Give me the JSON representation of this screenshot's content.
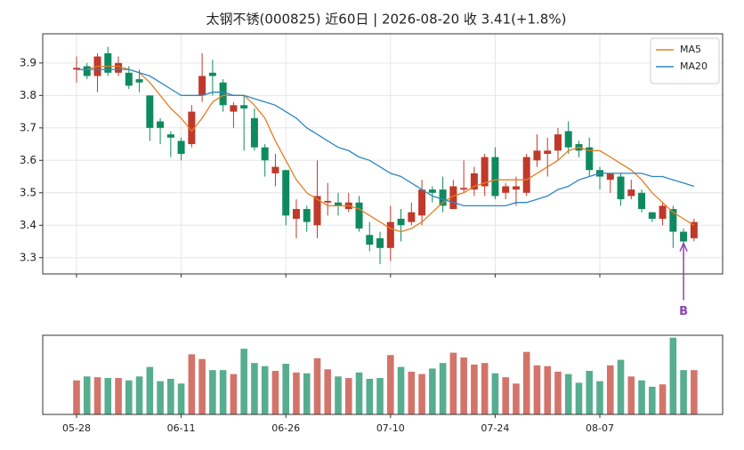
{
  "chart_data": {
    "type": "candlestick",
    "title": "太钢不锈(000825) 近60日 | 2026-08-20 收 3.41(+1.8%)",
    "categories": [
      "05-28",
      null,
      null,
      null,
      null,
      null,
      null,
      null,
      null,
      null,
      "06-11",
      null,
      null,
      null,
      null,
      null,
      null,
      null,
      null,
      null,
      "06-26",
      null,
      null,
      null,
      null,
      null,
      null,
      null,
      null,
      null,
      "07-10",
      null,
      null,
      null,
      null,
      null,
      null,
      null,
      null,
      null,
      "07-24",
      null,
      null,
      null,
      null,
      null,
      null,
      null,
      null,
      null,
      "08-07",
      null,
      null,
      null,
      null,
      null,
      null,
      null,
      null,
      null
    ],
    "open": [
      3.88,
      3.89,
      3.86,
      3.93,
      3.87,
      3.87,
      3.85,
      3.8,
      3.72,
      3.68,
      3.66,
      3.65,
      3.8,
      3.87,
      3.84,
      3.75,
      3.77,
      3.73,
      3.64,
      3.56,
      3.57,
      3.42,
      3.45,
      3.4,
      3.47,
      3.47,
      3.45,
      3.47,
      3.37,
      3.36,
      3.33,
      3.42,
      3.41,
      3.43,
      3.51,
      3.51,
      3.45,
      3.51,
      3.51,
      3.52,
      3.61,
      3.5,
      3.51,
      3.5,
      3.6,
      3.62,
      3.63,
      3.69,
      3.65,
      3.64,
      3.57,
      3.54,
      3.55,
      3.49,
      3.5,
      3.44,
      3.42,
      3.45,
      3.38,
      3.36
    ],
    "high": [
      3.92,
      3.9,
      3.93,
      3.95,
      3.92,
      3.89,
      3.88,
      3.8,
      3.73,
      3.69,
      3.67,
      3.77,
      3.93,
      3.91,
      3.85,
      3.78,
      3.8,
      3.76,
      3.65,
      3.62,
      3.57,
      3.48,
      3.46,
      3.6,
      3.53,
      3.5,
      3.5,
      3.49,
      3.41,
      3.38,
      3.46,
      3.45,
      3.47,
      3.54,
      3.52,
      3.55,
      3.54,
      3.6,
      3.58,
      3.62,
      3.64,
      3.53,
      3.55,
      3.62,
      3.68,
      3.67,
      3.7,
      3.72,
      3.66,
      3.67,
      3.58,
      3.56,
      3.56,
      3.54,
      3.51,
      3.44,
      3.47,
      3.46,
      3.39,
      3.42
    ],
    "low": [
      3.84,
      3.85,
      3.81,
      3.86,
      3.86,
      3.82,
      3.81,
      3.66,
      3.65,
      3.61,
      3.6,
      3.64,
      3.78,
      3.8,
      3.75,
      3.7,
      3.63,
      3.63,
      3.55,
      3.52,
      3.4,
      3.36,
      3.38,
      3.36,
      3.43,
      3.43,
      3.44,
      3.38,
      3.32,
      3.28,
      3.29,
      3.35,
      3.4,
      3.4,
      3.47,
      3.44,
      3.45,
      3.5,
      3.49,
      3.49,
      3.48,
      3.48,
      3.46,
      3.49,
      3.58,
      3.55,
      3.6,
      3.62,
      3.61,
      3.55,
      3.51,
      3.5,
      3.46,
      3.48,
      3.44,
      3.41,
      3.4,
      3.33,
      3.33,
      3.35
    ],
    "close": [
      3.885,
      3.86,
      3.92,
      3.87,
      3.9,
      3.83,
      3.84,
      3.7,
      3.7,
      3.67,
      3.62,
      3.75,
      3.86,
      3.86,
      3.77,
      3.77,
      3.76,
      3.64,
      3.6,
      3.58,
      3.43,
      3.45,
      3.41,
      3.49,
      3.475,
      3.46,
      3.47,
      3.39,
      3.34,
      3.33,
      3.41,
      3.4,
      3.44,
      3.51,
      3.5,
      3.46,
      3.52,
      3.515,
      3.56,
      3.61,
      3.49,
      3.52,
      3.52,
      3.61,
      3.63,
      3.63,
      3.68,
      3.64,
      3.63,
      3.57,
      3.55,
      3.56,
      3.48,
      3.51,
      3.45,
      3.42,
      3.46,
      3.38,
      3.35,
      3.41
    ],
    "up_color": "#c0392b",
    "down_color": "#0f8a5f",
    "series": [
      {
        "name": "MA5",
        "color": "#e67e22",
        "values": [
          3.88,
          3.88,
          3.89,
          3.89,
          3.89,
          3.88,
          3.87,
          3.84,
          3.8,
          3.76,
          3.73,
          3.69,
          3.73,
          3.78,
          3.8,
          3.8,
          3.8,
          3.77,
          3.73,
          3.66,
          3.6,
          3.54,
          3.5,
          3.48,
          3.46,
          3.46,
          3.46,
          3.45,
          3.43,
          3.41,
          3.39,
          3.38,
          3.39,
          3.41,
          3.44,
          3.47,
          3.49,
          3.5,
          3.52,
          3.53,
          3.54,
          3.54,
          3.54,
          3.54,
          3.56,
          3.58,
          3.6,
          3.63,
          3.64,
          3.63,
          3.63,
          3.61,
          3.59,
          3.57,
          3.54,
          3.5,
          3.47,
          3.44,
          3.42,
          3.4
        ]
      },
      {
        "name": "MA20",
        "color": "#2e86c1",
        "values": [
          3.88,
          3.88,
          3.88,
          3.88,
          3.88,
          3.88,
          3.87,
          3.86,
          3.84,
          3.82,
          3.8,
          3.8,
          3.8,
          3.81,
          3.81,
          3.8,
          3.8,
          3.79,
          3.78,
          3.77,
          3.75,
          3.73,
          3.7,
          3.68,
          3.66,
          3.64,
          3.63,
          3.61,
          3.6,
          3.58,
          3.56,
          3.55,
          3.53,
          3.51,
          3.49,
          3.48,
          3.47,
          3.46,
          3.46,
          3.46,
          3.46,
          3.46,
          3.47,
          3.47,
          3.48,
          3.49,
          3.51,
          3.52,
          3.54,
          3.55,
          3.56,
          3.56,
          3.56,
          3.56,
          3.56,
          3.55,
          3.55,
          3.54,
          3.53,
          3.52
        ]
      }
    ],
    "volume": [
      43,
      48,
      47,
      46,
      46,
      43,
      48,
      60,
      42,
      45,
      39,
      76,
      70,
      56,
      56,
      51,
      83,
      65,
      61,
      55,
      64,
      53,
      52,
      71,
      57,
      48,
      46,
      53,
      45,
      46,
      75,
      60,
      54,
      51,
      58,
      65,
      78,
      72,
      63,
      65,
      52,
      47,
      39,
      79,
      62,
      61,
      54,
      51,
      40,
      55,
      42,
      62,
      69,
      48,
      43,
      35,
      38,
      97,
      56,
      56
    ],
    "volume_ylim": [
      0,
      100
    ],
    "ylim": [
      3.25,
      3.99
    ],
    "yticks": [
      3.3,
      3.4,
      3.5,
      3.6,
      3.7,
      3.8,
      3.9
    ],
    "grid": true,
    "legend": "upper right",
    "annotations": [
      {
        "text": "B",
        "x": 58,
        "y": 3.35,
        "color": "#8e44ad"
      }
    ]
  }
}
